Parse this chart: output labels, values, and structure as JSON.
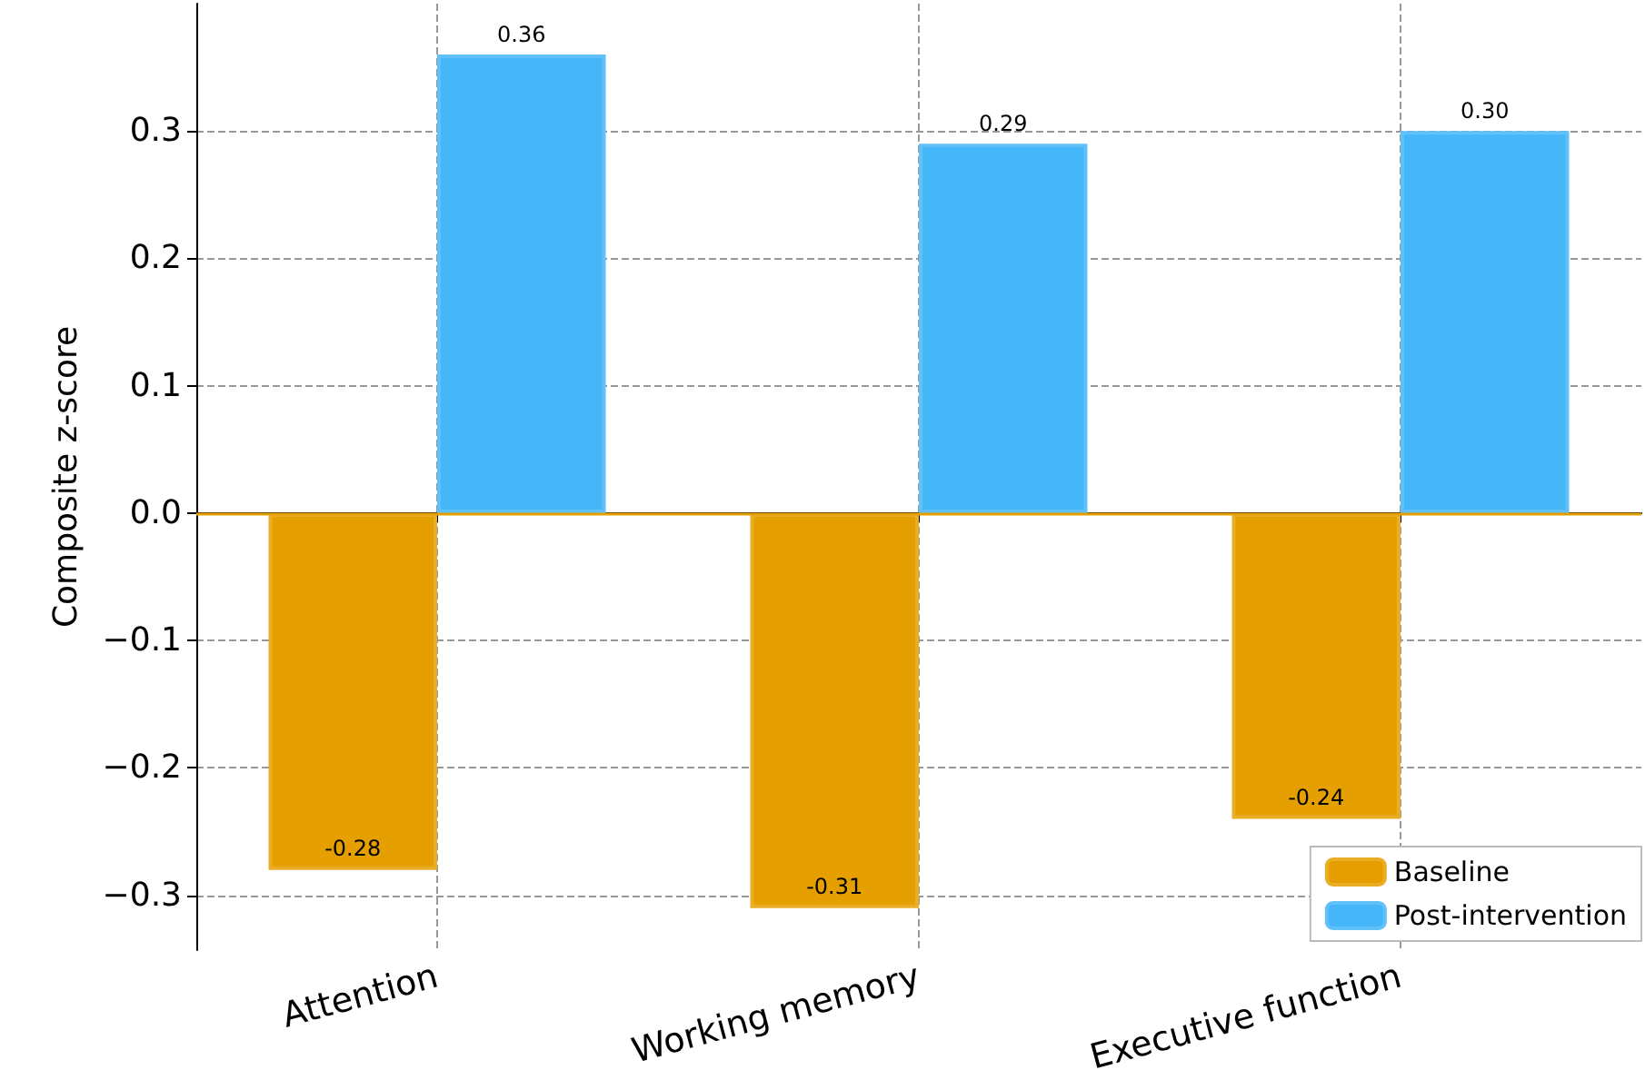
{
  "chart_data": {
    "type": "bar",
    "ylabel": "Composite z-score",
    "categories": [
      "Attention",
      "Working memory",
      "Executive function"
    ],
    "series": [
      {
        "name": "Baseline",
        "color": "#e69f00",
        "values": [
          -0.28,
          -0.31,
          -0.24
        ],
        "value_labels": [
          "-0.28",
          "-0.31",
          "-0.24"
        ]
      },
      {
        "name": "Post-intervention",
        "color": "#45b6f7",
        "values": [
          0.36,
          0.29,
          0.3
        ],
        "value_labels": [
          "0.36",
          "0.29",
          "0.30"
        ]
      }
    ],
    "ylim": [
      -0.343,
      0.4
    ],
    "yticks": [
      {
        "value": -0.3,
        "label": "−0.3"
      },
      {
        "value": -0.2,
        "label": "−0.2"
      },
      {
        "value": -0.1,
        "label": "−0.1"
      },
      {
        "value": 0,
        "label": "0.0"
      },
      {
        "value": 0.1,
        "label": "0.1"
      },
      {
        "value": 0.2,
        "label": "0.2"
      },
      {
        "value": 0.3,
        "label": "0.3"
      }
    ],
    "ref_lines": [
      {
        "axis": "y",
        "value": 0,
        "color": "#e69f00",
        "line_style": "solid"
      }
    ],
    "grid": true,
    "legend": "bottom right"
  }
}
